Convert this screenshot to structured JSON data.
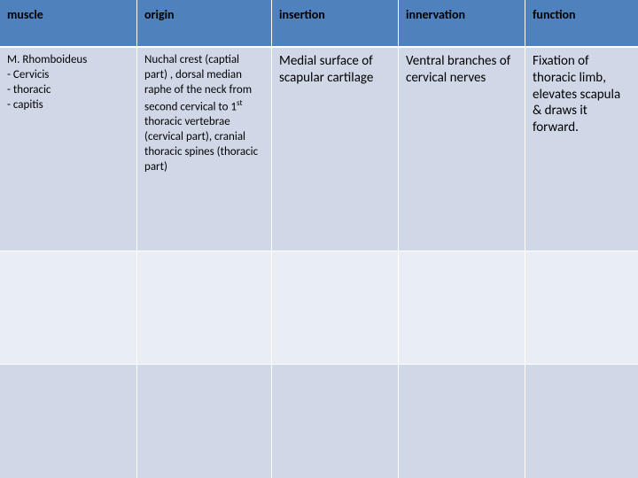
{
  "table": {
    "type": "table",
    "columns": [
      {
        "key": "muscle",
        "label": "muscle",
        "width": 155
      },
      {
        "key": "origin",
        "label": "origin",
        "width": 152
      },
      {
        "key": "insertion",
        "label": "insertion",
        "width": 143
      },
      {
        "key": "innervation",
        "label": "innervation",
        "width": 143
      },
      {
        "key": "function",
        "label": "function",
        "width": 127
      }
    ],
    "header_bg": "#4f81bd",
    "row_colors": [
      "#d0d8e8",
      "#e9edf4",
      "#d0d8e8"
    ],
    "border_color": "#ffffff",
    "header_font_size": 14,
    "muscle_font_size": 13,
    "origin_font_size": 13,
    "body_font_size": 15,
    "rows": [
      {
        "muscle": "M. Rhomboideus\n- Cervicis\n- thoracic\n- capitis",
        "origin": "Nuchal crest (captial part) , dorsal median raphe of the neck from second cervical to 1",
        "origin_sup": "st",
        "origin_tail": " thoracic vertebrae (cervical part), cranial thoracic spines (thoracic part)",
        "insertion": "Medial surface of scapular cartilage",
        "innervation": "Ventral branches of cervical nerves",
        "function": "Fixation of thoracic limb, elevates scapula & draws it forward."
      },
      {
        "muscle": "",
        "origin": "",
        "origin_sup": "",
        "origin_tail": "",
        "insertion": "",
        "innervation": "",
        "function": ""
      },
      {
        "muscle": "",
        "origin": "",
        "origin_sup": "",
        "origin_tail": "",
        "insertion": "",
        "innervation": "",
        "function": ""
      }
    ]
  }
}
